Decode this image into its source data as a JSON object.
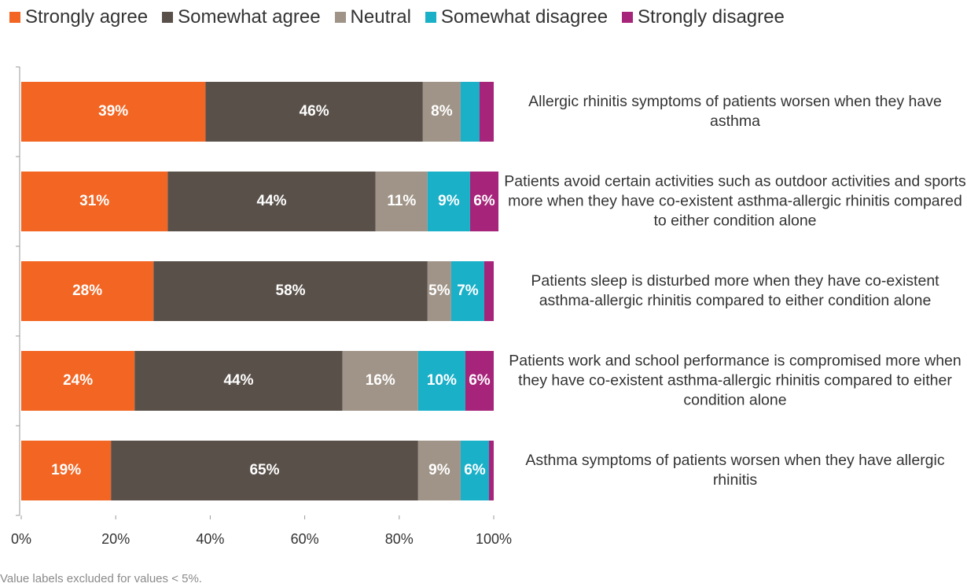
{
  "chart_data": {
    "type": "stacked_barh",
    "categories": [
      "Allergic rhinitis symptoms of patients worsen when they have asthma",
      "Patients avoid certain activities such as outdoor activities and sports more when they have co-existent asthma-allergic rhinitis compared to either condition alone",
      "Patients sleep is disturbed more when they have co-existent asthma-allergic rhinitis compared to either condition alone",
      "Patients work and school performance is compromised more when they have co-existent asthma-allergic rhinitis compared to either condition alone",
      "Asthma symptoms of patients worsen when they have allergic rhinitis"
    ],
    "series": [
      {
        "name": "Strongly agree",
        "color": "#f26522",
        "values": [
          39,
          31,
          28,
          24,
          19
        ],
        "value_labels": [
          "39%",
          "31%",
          "28%",
          "24%",
          "19%"
        ]
      },
      {
        "name": "Somewhat agree",
        "color": "#595049",
        "values": [
          46,
          44,
          58,
          44,
          65
        ],
        "value_labels": [
          "46%",
          "44%",
          "58%",
          "44%",
          "65%"
        ]
      },
      {
        "name": "Neutral",
        "color": "#a09488",
        "values": [
          8,
          11,
          5,
          16,
          9
        ],
        "value_labels": [
          "8%",
          "11%",
          "5%",
          "16%",
          "9%"
        ]
      },
      {
        "name": "Somewhat disagree",
        "color": "#1ab0c8",
        "values": [
          4,
          9,
          7,
          10,
          6
        ],
        "value_labels": [
          null,
          "9%",
          "7%",
          "10%",
          "6%"
        ]
      },
      {
        "name": "Strongly disagree",
        "color": "#a6247a",
        "values": [
          3,
          6,
          2,
          6,
          1
        ],
        "value_labels": [
          null,
          "6%",
          null,
          "6%",
          null
        ]
      }
    ],
    "xlim": [
      0,
      100
    ],
    "xticks": [
      {
        "value": 0,
        "label": "0%"
      },
      {
        "value": 20,
        "label": "20%"
      },
      {
        "value": 40,
        "label": "40%"
      },
      {
        "value": 60,
        "label": "60%"
      },
      {
        "value": 80,
        "label": "80%"
      },
      {
        "value": 100,
        "label": "100%"
      }
    ],
    "legend": "top",
    "footnote": "Value labels excluded for values < 5%."
  }
}
